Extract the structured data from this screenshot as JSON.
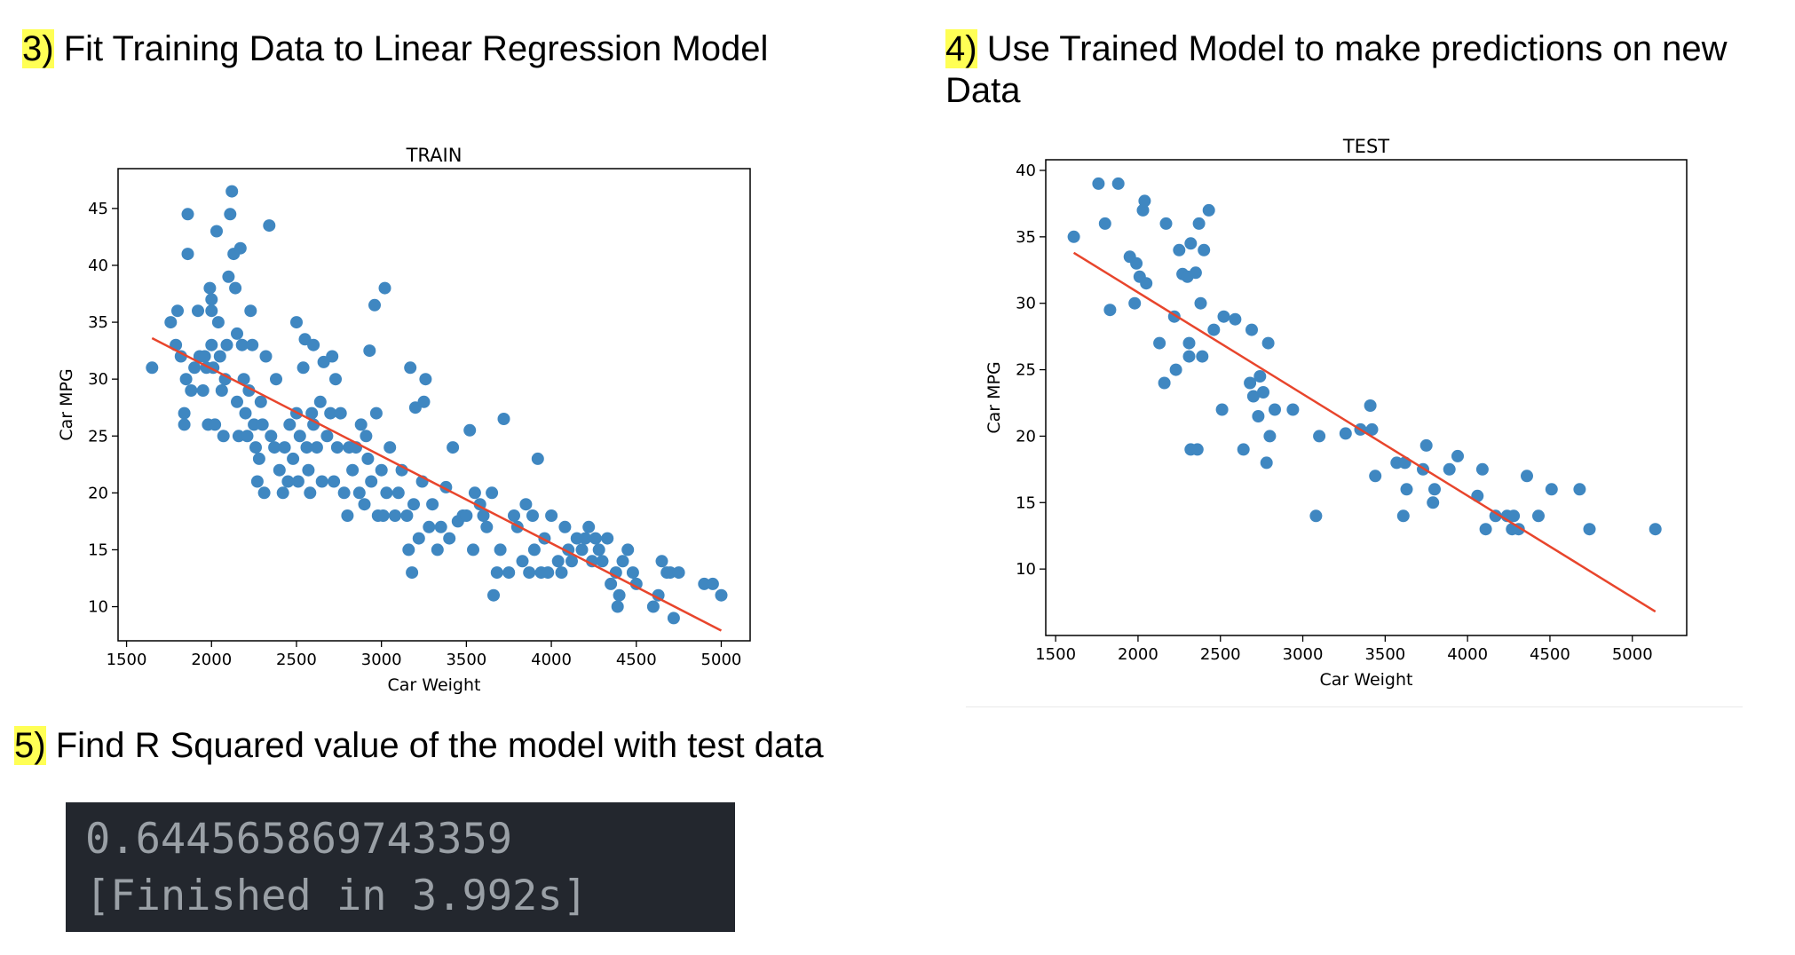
{
  "headings": {
    "step3": {
      "num": "3)",
      "text": " Fit Training Data to Linear Regression Model"
    },
    "step4": {
      "num": "4)",
      "text": " Use Trained Model to make predictions on new Data"
    },
    "step5": {
      "num": "5)",
      "text": " Find R Squared value of the model with test data"
    }
  },
  "console": {
    "line1": "0.644565869743359",
    "line2": "[Finished in 3.992s]",
    "background": "#23272e",
    "text_color": "#9aa0a6"
  },
  "colors": {
    "point": "#3f87c1",
    "fit_line": "#e8452c",
    "highlight": "#ffff55"
  },
  "chart_data": [
    {
      "type": "scatter",
      "title": "TRAIN",
      "xlabel": "Car Weight",
      "ylabel": "Car MPG",
      "xlim": [
        1450,
        5170
      ],
      "ylim": [
        7,
        48.5
      ],
      "xticks": [
        1500,
        2000,
        2500,
        3000,
        3500,
        4000,
        4500,
        5000
      ],
      "yticks": [
        10,
        15,
        20,
        25,
        30,
        35,
        40,
        45
      ],
      "grid": false,
      "fit_line": {
        "x": [
          1650,
          5000
        ],
        "y": [
          33.6,
          7.9
        ]
      },
      "points": [
        [
          1650,
          31
        ],
        [
          1760,
          35
        ],
        [
          1790,
          33
        ],
        [
          1800,
          36
        ],
        [
          1820,
          32
        ],
        [
          1840,
          27
        ],
        [
          1840,
          26
        ],
        [
          1850,
          30
        ],
        [
          1860,
          41
        ],
        [
          1860,
          44.5
        ],
        [
          1880,
          29
        ],
        [
          1900,
          31
        ],
        [
          1920,
          36
        ],
        [
          1930,
          32
        ],
        [
          1950,
          29
        ],
        [
          1960,
          32
        ],
        [
          1970,
          31
        ],
        [
          1980,
          26
        ],
        [
          1990,
          38
        ],
        [
          2000,
          37
        ],
        [
          2000,
          36
        ],
        [
          2000,
          33
        ],
        [
          2010,
          31
        ],
        [
          2020,
          26
        ],
        [
          2030,
          43
        ],
        [
          2040,
          35
        ],
        [
          2050,
          32
        ],
        [
          2060,
          29
        ],
        [
          2070,
          25
        ],
        [
          2080,
          30
        ],
        [
          2090,
          33
        ],
        [
          2100,
          39
        ],
        [
          2110,
          44.5
        ],
        [
          2120,
          46.5
        ],
        [
          2130,
          41
        ],
        [
          2140,
          38
        ],
        [
          2150,
          34
        ],
        [
          2150,
          28
        ],
        [
          2160,
          25
        ],
        [
          2170,
          41.5
        ],
        [
          2180,
          33
        ],
        [
          2190,
          30
        ],
        [
          2200,
          27
        ],
        [
          2210,
          25
        ],
        [
          2220,
          29
        ],
        [
          2230,
          36
        ],
        [
          2240,
          33
        ],
        [
          2250,
          26
        ],
        [
          2260,
          24
        ],
        [
          2270,
          21
        ],
        [
          2280,
          23
        ],
        [
          2290,
          28
        ],
        [
          2300,
          26
        ],
        [
          2310,
          20
        ],
        [
          2320,
          32
        ],
        [
          2340,
          43.5
        ],
        [
          2350,
          25
        ],
        [
          2370,
          24
        ],
        [
          2380,
          30
        ],
        [
          2400,
          22
        ],
        [
          2420,
          20
        ],
        [
          2430,
          24
        ],
        [
          2450,
          21
        ],
        [
          2460,
          26
        ],
        [
          2480,
          23
        ],
        [
          2500,
          35
        ],
        [
          2500,
          27
        ],
        [
          2510,
          21
        ],
        [
          2520,
          25
        ],
        [
          2540,
          31
        ],
        [
          2550,
          33.5
        ],
        [
          2560,
          24
        ],
        [
          2570,
          22
        ],
        [
          2580,
          20
        ],
        [
          2590,
          27
        ],
        [
          2600,
          33
        ],
        [
          2600,
          26
        ],
        [
          2620,
          24
        ],
        [
          2640,
          28
        ],
        [
          2650,
          21
        ],
        [
          2660,
          31.5
        ],
        [
          2680,
          25
        ],
        [
          2700,
          27
        ],
        [
          2710,
          32
        ],
        [
          2720,
          21
        ],
        [
          2730,
          30
        ],
        [
          2740,
          24
        ],
        [
          2760,
          27
        ],
        [
          2780,
          20
        ],
        [
          2800,
          18
        ],
        [
          2810,
          24
        ],
        [
          2830,
          22
        ],
        [
          2850,
          24
        ],
        [
          2870,
          20
        ],
        [
          2880,
          26
        ],
        [
          2900,
          19
        ],
        [
          2910,
          25
        ],
        [
          2920,
          23
        ],
        [
          2930,
          32.5
        ],
        [
          2940,
          21
        ],
        [
          2960,
          36.5
        ],
        [
          2970,
          27
        ],
        [
          2980,
          18
        ],
        [
          3000,
          22
        ],
        [
          3010,
          18
        ],
        [
          3020,
          38
        ],
        [
          3030,
          20
        ],
        [
          3050,
          24
        ],
        [
          3080,
          18
        ],
        [
          3100,
          20
        ],
        [
          3120,
          22
        ],
        [
          3150,
          18
        ],
        [
          3160,
          15
        ],
        [
          3170,
          31
        ],
        [
          3180,
          13
        ],
        [
          3190,
          19
        ],
        [
          3200,
          27.5
        ],
        [
          3220,
          16
        ],
        [
          3240,
          21
        ],
        [
          3250,
          28
        ],
        [
          3260,
          30
        ],
        [
          3280,
          17
        ],
        [
          3300,
          19
        ],
        [
          3330,
          15
        ],
        [
          3350,
          17
        ],
        [
          3380,
          20.5
        ],
        [
          3400,
          16
        ],
        [
          3420,
          24
        ],
        [
          3450,
          17.5
        ],
        [
          3480,
          18
        ],
        [
          3500,
          18
        ],
        [
          3520,
          25.5
        ],
        [
          3540,
          15
        ],
        [
          3550,
          20
        ],
        [
          3580,
          19
        ],
        [
          3600,
          18
        ],
        [
          3620,
          17
        ],
        [
          3650,
          20
        ],
        [
          3660,
          11
        ],
        [
          3680,
          13
        ],
        [
          3700,
          15
        ],
        [
          3720,
          26.5
        ],
        [
          3750,
          13
        ],
        [
          3780,
          18
        ],
        [
          3800,
          17
        ],
        [
          3830,
          14
        ],
        [
          3850,
          19
        ],
        [
          3870,
          13
        ],
        [
          3890,
          18
        ],
        [
          3900,
          15
        ],
        [
          3920,
          23
        ],
        [
          3940,
          13
        ],
        [
          3960,
          16
        ],
        [
          3980,
          13
        ],
        [
          4000,
          18
        ],
        [
          4040,
          14
        ],
        [
          4060,
          13
        ],
        [
          4080,
          17
        ],
        [
          4100,
          15
        ],
        [
          4120,
          14
        ],
        [
          4150,
          16
        ],
        [
          4180,
          15
        ],
        [
          4200,
          16
        ],
        [
          4220,
          17
        ],
        [
          4240,
          14
        ],
        [
          4260,
          16
        ],
        [
          4280,
          15
        ],
        [
          4300,
          14
        ],
        [
          4330,
          16
        ],
        [
          4350,
          12
        ],
        [
          4380,
          13
        ],
        [
          4390,
          10
        ],
        [
          4400,
          11
        ],
        [
          4420,
          14
        ],
        [
          4450,
          15
        ],
        [
          4480,
          13
        ],
        [
          4500,
          12
        ],
        [
          4600,
          10
        ],
        [
          4630,
          11
        ],
        [
          4650,
          14
        ],
        [
          4680,
          13
        ],
        [
          4700,
          13
        ],
        [
          4720,
          9
        ],
        [
          4750,
          13
        ],
        [
          4900,
          12
        ],
        [
          4950,
          12
        ],
        [
          5000,
          11
        ]
      ]
    },
    {
      "type": "scatter",
      "title": "TEST",
      "xlabel": "Car Weight",
      "ylabel": "Car MPG",
      "xlim": [
        1440,
        5330
      ],
      "ylim": [
        5,
        40.8
      ],
      "xticks": [
        1500,
        2000,
        2500,
        3000,
        3500,
        4000,
        4500,
        5000
      ],
      "yticks": [
        10,
        15,
        20,
        25,
        30,
        35,
        40
      ],
      "grid": false,
      "fit_line": {
        "x": [
          1610,
          5140
        ],
        "y": [
          33.8,
          6.8
        ]
      },
      "points": [
        [
          1610,
          35
        ],
        [
          1760,
          39
        ],
        [
          1800,
          36
        ],
        [
          1830,
          29.5
        ],
        [
          1880,
          39
        ],
        [
          1950,
          33.5
        ],
        [
          1980,
          30
        ],
        [
          1990,
          33
        ],
        [
          2010,
          32
        ],
        [
          2030,
          37
        ],
        [
          2040,
          37.7
        ],
        [
          2050,
          31.5
        ],
        [
          2130,
          27
        ],
        [
          2160,
          24
        ],
        [
          2170,
          36
        ],
        [
          2220,
          29
        ],
        [
          2230,
          25
        ],
        [
          2250,
          34
        ],
        [
          2270,
          32.2
        ],
        [
          2300,
          32
        ],
        [
          2310,
          27
        ],
        [
          2310,
          26
        ],
        [
          2320,
          34.5
        ],
        [
          2320,
          19
        ],
        [
          2350,
          32.3
        ],
        [
          2360,
          19
        ],
        [
          2370,
          36
        ],
        [
          2380,
          30
        ],
        [
          2390,
          26
        ],
        [
          2400,
          34
        ],
        [
          2430,
          37
        ],
        [
          2460,
          28
        ],
        [
          2510,
          22
        ],
        [
          2520,
          29
        ],
        [
          2590,
          28.8
        ],
        [
          2640,
          19
        ],
        [
          2680,
          24
        ],
        [
          2690,
          28
        ],
        [
          2700,
          23
        ],
        [
          2730,
          21.5
        ],
        [
          2740,
          24.5
        ],
        [
          2760,
          23.3
        ],
        [
          2780,
          18
        ],
        [
          2790,
          27
        ],
        [
          2800,
          20
        ],
        [
          2830,
          22
        ],
        [
          2940,
          22
        ],
        [
          3080,
          14
        ],
        [
          3100,
          20
        ],
        [
          3260,
          20.2
        ],
        [
          3350,
          20.5
        ],
        [
          3410,
          22.3
        ],
        [
          3420,
          20.5
        ],
        [
          3440,
          17
        ],
        [
          3570,
          18
        ],
        [
          3610,
          14
        ],
        [
          3620,
          18
        ],
        [
          3630,
          16
        ],
        [
          3730,
          17.5
        ],
        [
          3750,
          19.3
        ],
        [
          3790,
          15
        ],
        [
          3800,
          16
        ],
        [
          3890,
          17.5
        ],
        [
          3940,
          18.5
        ],
        [
          4060,
          15.5
        ],
        [
          4090,
          17.5
        ],
        [
          4110,
          13
        ],
        [
          4170,
          14
        ],
        [
          4240,
          14
        ],
        [
          4270,
          13
        ],
        [
          4280,
          14
        ],
        [
          4310,
          13
        ],
        [
          4360,
          17
        ],
        [
          4430,
          14
        ],
        [
          4510,
          16
        ],
        [
          4680,
          16
        ],
        [
          4740,
          13
        ],
        [
          5140,
          13
        ]
      ]
    }
  ]
}
